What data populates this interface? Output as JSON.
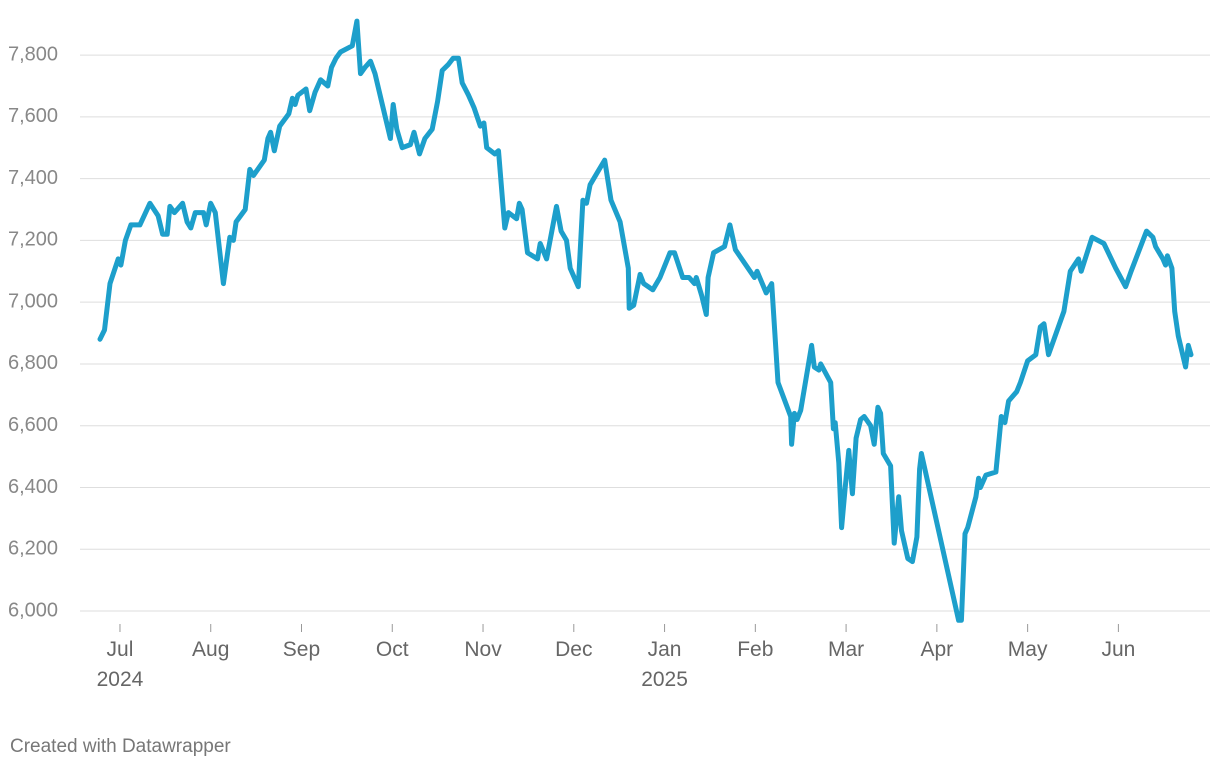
{
  "chart_data": {
    "type": "line",
    "color": "#1d9fcb",
    "grid": true,
    "footer": "Created with Datawrapper",
    "xlim": [
      -0.22,
      11.8
    ],
    "xticks": [
      {
        "value": 0,
        "label": "Jul",
        "year": "2024"
      },
      {
        "value": 1,
        "label": "Aug"
      },
      {
        "value": 2,
        "label": "Sep"
      },
      {
        "value": 3,
        "label": "Oct"
      },
      {
        "value": 4,
        "label": "Nov"
      },
      {
        "value": 5,
        "label": "Dec"
      },
      {
        "value": 6,
        "label": "Jan",
        "year": "2025"
      },
      {
        "value": 7,
        "label": "Feb"
      },
      {
        "value": 8,
        "label": "Mar"
      },
      {
        "value": 9,
        "label": "Apr"
      },
      {
        "value": 10,
        "label": "May"
      },
      {
        "value": 11,
        "label": "Jun"
      }
    ],
    "ylim": [
      5960,
      7920
    ],
    "yticks": [
      {
        "value": 6000,
        "label": "6,000"
      },
      {
        "value": 6200,
        "label": "6,200"
      },
      {
        "value": 6400,
        "label": "6,400"
      },
      {
        "value": 6600,
        "label": "6,600"
      },
      {
        "value": 6800,
        "label": "6,800"
      },
      {
        "value": 7000,
        "label": "7,000"
      },
      {
        "value": 7200,
        "label": "7,200"
      },
      {
        "value": 7400,
        "label": "7,400"
      },
      {
        "value": 7600,
        "label": "7,600"
      },
      {
        "value": 7800,
        "label": "7,800"
      }
    ],
    "x": [
      -0.22,
      -0.17,
      -0.11,
      -0.02,
      0.01,
      0.06,
      0.12,
      0.22,
      0.33,
      0.42,
      0.47,
      0.52,
      0.55,
      0.6,
      0.69,
      0.74,
      0.78,
      0.83,
      0.92,
      0.95,
      1.0,
      1.05,
      1.14,
      1.21,
      1.25,
      1.28,
      1.38,
      1.43,
      1.47,
      1.59,
      1.63,
      1.66,
      1.7,
      1.76,
      1.86,
      1.9,
      1.93,
      1.96,
      2.05,
      2.09,
      2.15,
      2.21,
      2.29,
      2.33,
      2.38,
      2.43,
      2.56,
      2.61,
      2.65,
      2.7,
      2.76,
      2.81,
      2.89,
      2.98,
      3.01,
      3.05,
      3.11,
      3.2,
      3.24,
      3.3,
      3.36,
      3.44,
      3.5,
      3.55,
      3.62,
      3.67,
      3.73,
      3.77,
      3.84,
      3.9,
      3.97,
      4.01,
      4.04,
      4.13,
      4.17,
      4.24,
      4.28,
      4.37,
      4.4,
      4.43,
      4.49,
      4.6,
      4.63,
      4.7,
      4.81,
      4.86,
      4.92,
      4.96,
      5.05,
      5.1,
      5.14,
      5.18,
      5.26,
      5.34,
      5.41,
      5.51,
      5.6,
      5.61,
      5.66,
      5.73,
      5.77,
      5.87,
      5.95,
      6.06,
      6.11,
      6.2,
      6.27,
      6.33,
      6.35,
      6.41,
      6.46,
      6.48,
      6.54,
      6.66,
      6.72,
      6.78,
      6.99,
      7.02,
      7.12,
      7.18,
      7.25,
      7.39,
      7.4,
      7.43,
      7.46,
      7.5,
      7.58,
      7.62,
      7.65,
      7.7,
      7.72,
      7.83,
      7.86,
      7.88,
      7.92,
      7.95,
      7.99,
      8.03,
      8.07,
      8.11,
      8.16,
      8.2,
      8.27,
      8.31,
      8.35,
      8.38,
      8.41,
      8.49,
      8.53,
      8.58,
      8.61,
      8.68,
      8.73,
      8.78,
      8.81,
      8.83,
      9.24,
      9.27,
      9.31,
      9.34,
      9.43,
      9.46,
      9.48,
      9.54,
      9.65,
      9.71,
      9.75,
      9.79,
      9.88,
      9.92,
      10.0,
      10.09,
      10.14,
      10.18,
      10.23,
      10.4,
      10.47,
      10.56,
      10.59,
      10.71,
      10.84,
      10.97,
      11.08,
      11.14,
      11.31,
      11.38,
      11.41,
      11.49,
      11.52,
      11.54,
      11.59,
      11.62,
      11.66,
      11.74,
      11.77,
      11.8
    ],
    "values": [
      6880,
      6910,
      7060,
      7140,
      7120,
      7200,
      7250,
      7250,
      7320,
      7280,
      7220,
      7220,
      7310,
      7290,
      7320,
      7260,
      7240,
      7290,
      7290,
      7250,
      7320,
      7290,
      7060,
      7210,
      7200,
      7260,
      7300,
      7430,
      7410,
      7460,
      7530,
      7550,
      7490,
      7570,
      7610,
      7660,
      7640,
      7670,
      7690,
      7620,
      7680,
      7720,
      7700,
      7760,
      7790,
      7810,
      7830,
      7910,
      7740,
      7760,
      7780,
      7740,
      7640,
      7530,
      7640,
      7560,
      7500,
      7510,
      7550,
      7480,
      7530,
      7560,
      7650,
      7750,
      7770,
      7790,
      7790,
      7710,
      7670,
      7630,
      7570,
      7580,
      7500,
      7480,
      7490,
      7240,
      7290,
      7270,
      7320,
      7300,
      7160,
      7140,
      7190,
      7140,
      7310,
      7230,
      7200,
      7110,
      7050,
      7330,
      7320,
      7380,
      7420,
      7460,
      7330,
      7260,
      7110,
      6980,
      6990,
      7090,
      7060,
      7040,
      7080,
      7160,
      7160,
      7080,
      7080,
      7060,
      7080,
      7020,
      6960,
      7080,
      7160,
      7180,
      7250,
      7170,
      7080,
      7100,
      7030,
      7060,
      6740,
      6630,
      6540,
      6640,
      6620,
      6650,
      6790,
      6860,
      6790,
      6780,
      6800,
      6740,
      6590,
      6610,
      6480,
      6270,
      6400,
      6520,
      6380,
      6560,
      6620,
      6630,
      6600,
      6540,
      6660,
      6640,
      6510,
      6470,
      6220,
      6370,
      6260,
      6170,
      6160,
      6240,
      6460,
      6510,
      5970,
      5970,
      6250,
      6270,
      6370,
      6430,
      6400,
      6440,
      6450,
      6630,
      6610,
      6680,
      6710,
      6740,
      6810,
      6830,
      6920,
      6930,
      6830,
      6970,
      7100,
      7140,
      7100,
      7210,
      7190,
      7110,
      7050,
      7100,
      7230,
      7210,
      7180,
      7140,
      7120,
      7150,
      7110,
      6970,
      6890,
      6790,
      6860,
      6830
    ]
  }
}
